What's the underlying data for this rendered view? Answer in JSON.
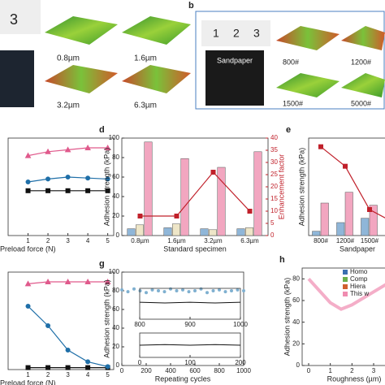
{
  "top": {
    "a_ruler": "3",
    "a_labels": [
      "0.8µm",
      "1.6µm",
      "3.2µm",
      "6.3µm"
    ],
    "b_letter": "b",
    "b_ruler": [
      "1",
      "2",
      "3"
    ],
    "b_sample": "Sandpaper",
    "b_labels": [
      "800#",
      "1200#",
      "1500#",
      "5000#"
    ]
  },
  "chart_data": [
    {
      "type": "line",
      "x_label": "Preload force (N)",
      "x": [
        1,
        2,
        3,
        4,
        5
      ],
      "xlim": [
        0,
        5.3
      ],
      "xticks": [
        1,
        2,
        3,
        4,
        5
      ],
      "ylim": [
        0,
        100
      ],
      "series": [
        {
          "color": "#111111",
          "marker": "square",
          "values": [
            46,
            46,
            46,
            46,
            46
          ]
        },
        {
          "color": "#1f6fa8",
          "marker": "circle",
          "values": [
            55,
            58,
            60,
            59,
            58
          ]
        },
        {
          "color": "#e05a8c",
          "marker": "triangle",
          "values": [
            82,
            86,
            88,
            90,
            90
          ]
        }
      ]
    },
    {
      "type": "bar",
      "label": "d",
      "y_label": "Adhesion strength (kPa)",
      "y2_label": "Enhancement factor",
      "x_label": "Standard specimen",
      "categories": [
        "0.8µm",
        "1.6µm",
        "3.2µm",
        "6.3µm"
      ],
      "ylim": [
        0,
        100
      ],
      "yticks": [
        0,
        20,
        40,
        60,
        80,
        100
      ],
      "y2lim": [
        0,
        40
      ],
      "y2ticks": [
        0,
        5,
        10,
        15,
        20,
        25,
        30,
        35,
        40
      ],
      "series": [
        {
          "color": "#8fb6d8",
          "values": [
            7,
            8,
            7,
            7
          ]
        },
        {
          "color": "#eee6c8",
          "values": [
            11,
            12,
            6,
            8
          ]
        },
        {
          "color": "#f2a6c0",
          "values": [
            96,
            79,
            70,
            86
          ]
        },
        {
          "color": "#c0202a",
          "axis": "y2",
          "values": [
            8,
            8,
            26,
            10
          ]
        }
      ]
    },
    {
      "type": "bar",
      "label": "e",
      "y_label": "Adhesion strength (kPa)",
      "x_label": "Sandpaper",
      "categories": [
        "800#",
        "1200#",
        "1500#",
        "5000#"
      ],
      "ylim": [
        0,
        45
      ],
      "y2lim": [
        0,
        45
      ],
      "series": [
        {
          "color": "#8fb6d8",
          "values": [
            2,
            6,
            8,
            7
          ]
        },
        {
          "color": "#f2a6c0",
          "values": [
            15,
            20,
            14,
            12
          ]
        },
        {
          "color": "#c0202a",
          "axis": "y2",
          "values": [
            41,
            32,
            12,
            6
          ]
        }
      ]
    },
    {
      "type": "line",
      "x_label": "Preload force (N)",
      "x": [
        1,
        2,
        3,
        4,
        5
      ],
      "xlim": [
        0,
        5.3
      ],
      "xticks": [
        1,
        2,
        3,
        4,
        5
      ],
      "ylim": [
        0,
        100
      ],
      "series": [
        {
          "color": "#111111",
          "marker": "square",
          "values": [
            2,
            2,
            2,
            2,
            2
          ]
        },
        {
          "color": "#1f6fa8",
          "marker": "circle",
          "values": [
            65,
            45,
            20,
            8,
            3
          ]
        },
        {
          "color": "#e05a8c",
          "marker": "triangle",
          "values": [
            88,
            90,
            90,
            90,
            90
          ]
        }
      ]
    },
    {
      "type": "scatter",
      "label": "g",
      "y_label": "Adhesion strength (kPa)",
      "x_label": "Repeating cycles",
      "xlim": [
        0,
        1000
      ],
      "xticks": [
        0,
        200,
        400,
        600,
        800,
        1000
      ],
      "ylim": [
        0,
        100
      ],
      "yticks": [
        0,
        20,
        40,
        60,
        80,
        100
      ],
      "color": "#7fb0d0",
      "x": [
        0,
        50,
        100,
        150,
        200,
        250,
        300,
        350,
        400,
        450,
        500,
        550,
        600,
        650,
        700,
        750,
        800,
        850,
        900,
        950,
        1000
      ],
      "values": [
        81,
        79,
        82,
        80,
        78,
        81,
        80,
        79,
        82,
        80,
        81,
        79,
        80,
        82,
        78,
        80,
        81,
        79,
        80,
        81,
        80
      ]
    },
    {
      "type": "line",
      "xlim": [
        800,
        1000
      ],
      "xticks": [
        800,
        900,
        1000
      ],
      "ylim": [
        40,
        80
      ],
      "x": [
        800,
        850,
        900,
        950,
        1000
      ],
      "series": [
        {
          "color": "#111111",
          "values": [
            62,
            61,
            62,
            61,
            62
          ]
        }
      ]
    },
    {
      "type": "line",
      "xlim": [
        0,
        200
      ],
      "xticks": [
        0,
        100,
        200
      ],
      "ylim": [
        40,
        80
      ],
      "x": [
        0,
        50,
        100,
        150,
        200
      ],
      "series": [
        {
          "color": "#111111",
          "values": [
            60,
            61,
            60,
            61,
            60
          ]
        }
      ]
    },
    {
      "type": "line",
      "label": "h",
      "y_label": "Adhesion strength (kPa)",
      "x_label": "Roughness (µm)",
      "xlim": [
        -0.3,
        4.5
      ],
      "xticks": [
        0,
        1,
        2,
        3,
        4
      ],
      "ylim": [
        0,
        90
      ],
      "yticks": [
        0,
        20,
        40,
        60,
        80
      ],
      "x": [
        0,
        1,
        1.5,
        2,
        3,
        4
      ],
      "series": [
        {
          "name": "Homo",
          "color": "#3a6fb0",
          "values": [
            null,
            null,
            null,
            null,
            null,
            null
          ]
        },
        {
          "name": "Comp",
          "color": "#6ab04c",
          "values": [
            null,
            null,
            null,
            null,
            null,
            null
          ]
        },
        {
          "name": "Hiera",
          "color": "#d06030",
          "values": [
            null,
            null,
            null,
            null,
            null,
            null
          ]
        },
        {
          "name": "This w",
          "color": "#f08cb0",
          "values": [
            80,
            58,
            52,
            56,
            68,
            80
          ]
        }
      ]
    }
  ]
}
